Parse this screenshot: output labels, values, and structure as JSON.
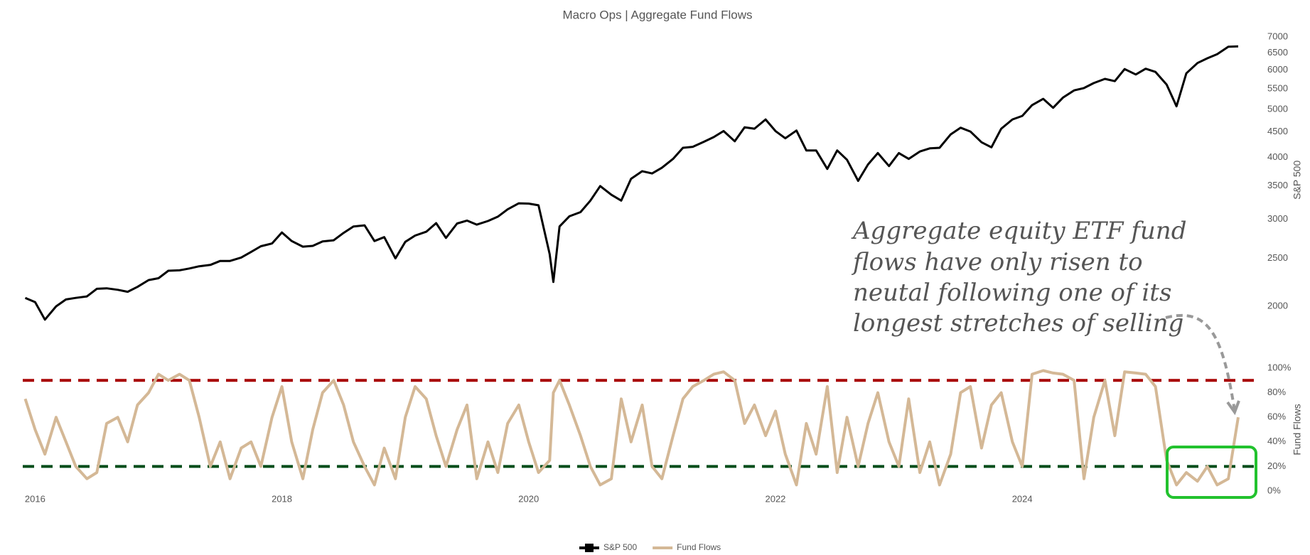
{
  "chart_data": [
    {
      "type": "line",
      "title": "Macro Ops | Aggregate Fund Flows",
      "y_label": "S&P 500",
      "log_y": true,
      "xlim": [
        2015.9,
        2025.9
      ],
      "xticks": [
        2016,
        2018,
        2020,
        2022,
        2024
      ],
      "ylim": [
        1800,
        7200
      ],
      "yticks": [
        2000,
        2500,
        3000,
        3500,
        4000,
        4500,
        5000,
        5500,
        6000,
        6500,
        7000
      ],
      "x": [
        2015.92,
        2016.0,
        2016.08,
        2016.17,
        2016.25,
        2016.33,
        2016.42,
        2016.5,
        2016.58,
        2016.67,
        2016.75,
        2016.83,
        2016.92,
        2017.0,
        2017.08,
        2017.17,
        2017.25,
        2017.33,
        2017.42,
        2017.5,
        2017.58,
        2017.67,
        2017.75,
        2017.83,
        2017.92,
        2018.0,
        2018.08,
        2018.17,
        2018.25,
        2018.33,
        2018.42,
        2018.5,
        2018.58,
        2018.67,
        2018.75,
        2018.83,
        2018.92,
        2019.0,
        2019.08,
        2019.17,
        2019.25,
        2019.33,
        2019.42,
        2019.5,
        2019.58,
        2019.67,
        2019.75,
        2019.83,
        2019.92,
        2020.0,
        2020.08,
        2020.17,
        2020.2,
        2020.25,
        2020.33,
        2020.42,
        2020.5,
        2020.58,
        2020.67,
        2020.75,
        2020.83,
        2020.92,
        2021.0,
        2021.08,
        2021.17,
        2021.25,
        2021.33,
        2021.42,
        2021.5,
        2021.58,
        2021.67,
        2021.75,
        2021.83,
        2021.92,
        2022.0,
        2022.08,
        2022.17,
        2022.25,
        2022.33,
        2022.42,
        2022.5,
        2022.58,
        2022.67,
        2022.75,
        2022.83,
        2022.92,
        2023.0,
        2023.08,
        2023.17,
        2023.25,
        2023.33,
        2023.42,
        2023.5,
        2023.58,
        2023.67,
        2023.75,
        2023.83,
        2023.92,
        2024.0,
        2024.08,
        2024.17,
        2024.25,
        2024.33,
        2024.42,
        2024.5,
        2024.58,
        2024.67,
        2024.75,
        2024.83,
        2024.92,
        2025.0,
        2025.08,
        2025.17,
        2025.25,
        2025.33,
        2025.42,
        2025.5,
        2025.58,
        2025.67,
        2025.75
      ],
      "series": [
        {
          "name": "S&P 500",
          "color": "#000000",
          "values": [
            2080,
            2040,
            1880,
            2000,
            2065,
            2080,
            2095,
            2170,
            2175,
            2160,
            2140,
            2190,
            2260,
            2280,
            2360,
            2365,
            2385,
            2410,
            2425,
            2470,
            2470,
            2510,
            2575,
            2645,
            2680,
            2820,
            2710,
            2640,
            2650,
            2705,
            2720,
            2815,
            2900,
            2915,
            2710,
            2760,
            2500,
            2700,
            2780,
            2830,
            2945,
            2750,
            2940,
            2980,
            2925,
            2975,
            3035,
            3140,
            3230,
            3225,
            3200,
            2550,
            2240,
            2900,
            3040,
            3100,
            3270,
            3500,
            3360,
            3270,
            3620,
            3750,
            3710,
            3810,
            3970,
            4180,
            4200,
            4300,
            4395,
            4520,
            4310,
            4600,
            4570,
            4770,
            4520,
            4370,
            4530,
            4130,
            4130,
            3790,
            4130,
            3955,
            3585,
            3870,
            4080,
            3840,
            4080,
            3970,
            4110,
            4170,
            4180,
            4450,
            4590,
            4510,
            4290,
            4190,
            4570,
            4770,
            4850,
            5100,
            5250,
            5035,
            5280,
            5460,
            5520,
            5650,
            5760,
            5700,
            6030,
            5880,
            6040,
            5950,
            5610,
            5070,
            5910,
            6200,
            6340,
            6460,
            6690,
            6700
          ]
        }
      ],
      "annotation": [
        "Aggregate equity ETF fund",
        "flows have only risen to",
        "neutal following one of its",
        "longest stretches of selling"
      ]
    },
    {
      "type": "line",
      "y_label": "Fund Flows",
      "xlim": [
        2015.9,
        2025.9
      ],
      "ylim": [
        0,
        100
      ],
      "yticks": [
        {
          "value": 0,
          "label": "0%"
        },
        {
          "value": 20,
          "label": "20%"
        },
        {
          "value": 40,
          "label": "40%"
        },
        {
          "value": 60,
          "label": "60%"
        },
        {
          "value": 80,
          "label": "80%"
        },
        {
          "value": 100,
          "label": "100%"
        }
      ],
      "hlines": [
        {
          "value": 90,
          "color": "#a80000"
        },
        {
          "value": 20,
          "color": "#004d1a"
        }
      ],
      "x": [
        2015.92,
        2016.0,
        2016.08,
        2016.17,
        2016.25,
        2016.33,
        2016.42,
        2016.5,
        2016.58,
        2016.67,
        2016.75,
        2016.83,
        2016.92,
        2017.0,
        2017.08,
        2017.17,
        2017.25,
        2017.33,
        2017.42,
        2017.5,
        2017.58,
        2017.67,
        2017.75,
        2017.83,
        2017.92,
        2018.0,
        2018.08,
        2018.17,
        2018.25,
        2018.33,
        2018.42,
        2018.5,
        2018.58,
        2018.67,
        2018.75,
        2018.83,
        2018.92,
        2019.0,
        2019.08,
        2019.17,
        2019.25,
        2019.33,
        2019.42,
        2019.5,
        2019.58,
        2019.67,
        2019.75,
        2019.83,
        2019.92,
        2020.0,
        2020.08,
        2020.17,
        2020.2,
        2020.25,
        2020.33,
        2020.42,
        2020.5,
        2020.58,
        2020.67,
        2020.75,
        2020.83,
        2020.92,
        2021.0,
        2021.08,
        2021.17,
        2021.25,
        2021.33,
        2021.42,
        2021.5,
        2021.58,
        2021.67,
        2021.75,
        2021.83,
        2021.92,
        2022.0,
        2022.08,
        2022.17,
        2022.25,
        2022.33,
        2022.42,
        2022.5,
        2022.58,
        2022.67,
        2022.75,
        2022.83,
        2022.92,
        2023.0,
        2023.08,
        2023.17,
        2023.25,
        2023.33,
        2023.42,
        2023.5,
        2023.58,
        2023.67,
        2023.75,
        2023.83,
        2023.92,
        2024.0,
        2024.08,
        2024.17,
        2024.25,
        2024.33,
        2024.42,
        2024.5,
        2024.58,
        2024.67,
        2024.75,
        2024.83,
        2024.92,
        2025.0,
        2025.08,
        2025.17,
        2025.25,
        2025.33,
        2025.42,
        2025.5,
        2025.58,
        2025.67,
        2025.75
      ],
      "series": [
        {
          "name": "Fund Flows",
          "color": "#d4b896",
          "values": [
            75,
            50,
            30,
            60,
            40,
            20,
            10,
            15,
            55,
            60,
            40,
            70,
            80,
            95,
            90,
            95,
            90,
            60,
            20,
            40,
            10,
            35,
            40,
            20,
            60,
            85,
            40,
            10,
            50,
            80,
            90,
            70,
            40,
            20,
            5,
            35,
            10,
            60,
            85,
            75,
            45,
            20,
            50,
            70,
            10,
            40,
            15,
            55,
            70,
            40,
            15,
            25,
            80,
            90,
            70,
            45,
            20,
            5,
            10,
            75,
            40,
            70,
            20,
            10,
            45,
            75,
            85,
            90,
            95,
            97,
            90,
            55,
            70,
            45,
            65,
            30,
            5,
            55,
            30,
            85,
            15,
            60,
            20,
            55,
            80,
            40,
            20,
            75,
            15,
            40,
            5,
            30,
            80,
            85,
            35,
            70,
            80,
            40,
            20,
            95,
            98,
            96,
            95,
            90,
            10,
            60,
            90,
            45,
            97,
            96,
            95,
            85,
            25,
            5,
            15,
            8,
            20,
            5,
            10,
            60
          ]
        }
      ]
    }
  ]
}
